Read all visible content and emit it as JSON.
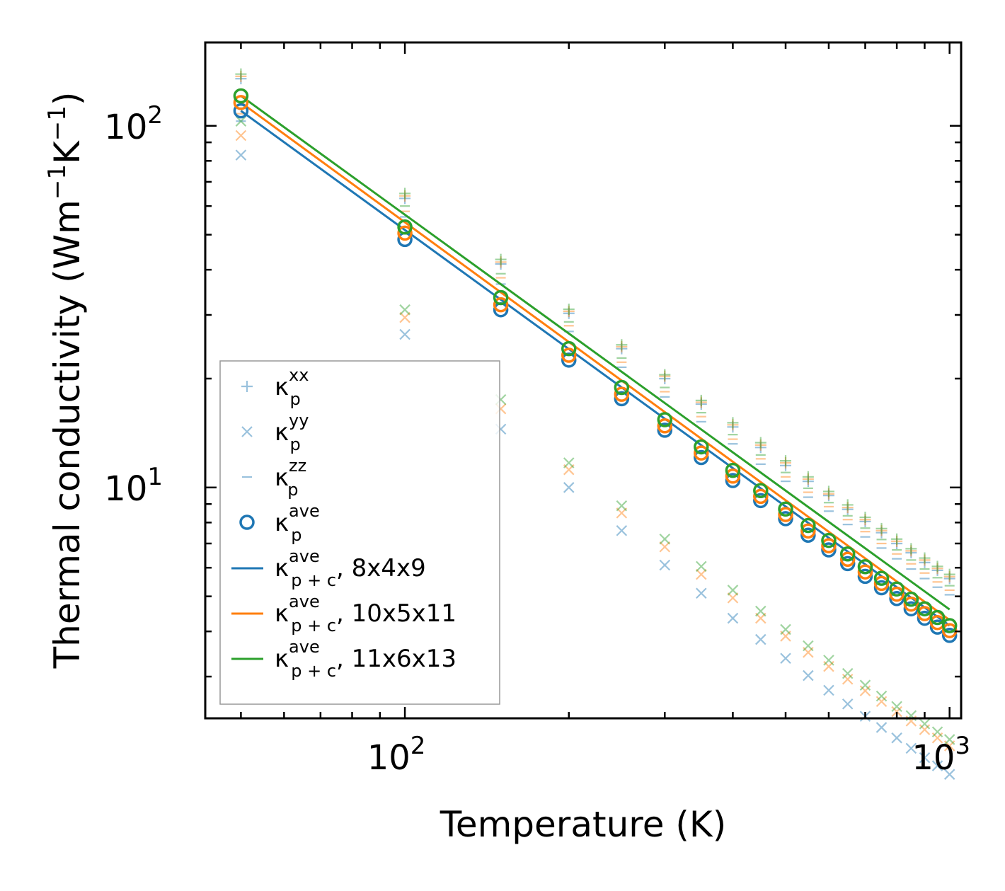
{
  "chart_data": {
    "type": "scatter",
    "title": "",
    "xlabel": "Temperature (K)",
    "ylabel": "Thermal conductivity (Wm",
    "ylabel_unit_parts": {
      "inv": "−1",
      "k": "K",
      "k_inv": "−1",
      "close": ")"
    },
    "xscale": "log",
    "yscale": "log",
    "xlim": [
      43,
      1050
    ],
    "ylim": [
      2.3,
      170
    ],
    "grid": false,
    "legend_position": "lower-left",
    "x_major_ticks": [
      {
        "value": 100,
        "base": "10",
        "exp": "2"
      },
      {
        "value": 1000,
        "base": "10",
        "exp": "3"
      }
    ],
    "y_major_ticks": [
      {
        "value": 10,
        "base": "10",
        "exp": "1"
      },
      {
        "value": 100,
        "base": "10",
        "exp": "2"
      }
    ],
    "temperatures": [
      50,
      100,
      150,
      200,
      250,
      300,
      350,
      400,
      450,
      500,
      550,
      600,
      650,
      700,
      750,
      800,
      850,
      900,
      950,
      1000
    ],
    "series": [
      {
        "name": "8x4x9",
        "color": "#1f77b4",
        "kxx": [
          135,
          63,
          41.5,
          30.3,
          24.2,
          20.0,
          17.0,
          14.7,
          12.9,
          11.5,
          10.4,
          9.5,
          8.7,
          8.05,
          7.5,
          7.0,
          6.6,
          6.2,
          5.9,
          5.6
        ],
        "kyy": [
          83,
          26.5,
          14.5,
          10.0,
          7.6,
          6.1,
          5.1,
          4.35,
          3.8,
          3.37,
          3.02,
          2.75,
          2.52,
          2.33,
          2.17,
          2.03,
          1.9,
          1.79,
          1.7,
          1.61
        ],
        "kzz": [
          103,
          56,
          36.5,
          27.0,
          21.5,
          17.8,
          15.2,
          13.2,
          11.6,
          10.4,
          9.4,
          8.6,
          7.9,
          7.3,
          6.8,
          6.35,
          5.95,
          5.6,
          5.3,
          5.05
        ],
        "kave": [
          110,
          48.5,
          31.0,
          22.5,
          17.6,
          14.4,
          12.1,
          10.45,
          9.2,
          8.2,
          7.38,
          6.72,
          6.16,
          5.68,
          5.28,
          4.93,
          4.62,
          4.35,
          4.11,
          3.9
        ],
        "line_end": 4.15
      },
      {
        "name": "10x5x11",
        "color": "#ff7f0e",
        "kxx": [
          137,
          64,
          42.0,
          30.7,
          24.5,
          20.3,
          17.2,
          14.9,
          13.1,
          11.7,
          10.55,
          9.6,
          8.8,
          8.15,
          7.6,
          7.1,
          6.68,
          6.3,
          5.97,
          5.67
        ],
        "kyy": [
          94,
          29.5,
          16.5,
          11.2,
          8.5,
          6.85,
          5.75,
          4.95,
          4.35,
          3.88,
          3.5,
          3.2,
          2.95,
          2.74,
          2.56,
          2.4,
          2.26,
          2.14,
          2.03,
          1.93
        ],
        "kzz": [
          108,
          58,
          38.0,
          28.0,
          22.2,
          18.4,
          15.7,
          13.6,
          12.0,
          10.7,
          9.7,
          8.85,
          8.15,
          7.55,
          7.0,
          6.55,
          6.15,
          5.8,
          5.48,
          5.2
        ],
        "kave": [
          116,
          50.5,
          32.0,
          23.2,
          18.1,
          14.8,
          12.45,
          10.75,
          9.45,
          8.42,
          7.58,
          6.9,
          6.33,
          5.84,
          5.43,
          5.07,
          4.76,
          4.48,
          4.23,
          4.02
        ],
        "line_end": 4.3
      },
      {
        "name": "11x6x13",
        "color": "#2ca02c",
        "kxx": [
          139,
          65,
          42.7,
          31.1,
          24.8,
          20.5,
          17.4,
          15.1,
          13.3,
          11.85,
          10.7,
          9.75,
          8.95,
          8.27,
          7.7,
          7.2,
          6.77,
          6.38,
          6.05,
          5.75
        ],
        "kyy": [
          103,
          31,
          17.5,
          11.7,
          8.9,
          7.2,
          6.05,
          5.2,
          4.55,
          4.05,
          3.65,
          3.33,
          3.06,
          2.84,
          2.65,
          2.48,
          2.34,
          2.22,
          2.11,
          2.01
        ],
        "kzz": [
          112,
          60,
          39.0,
          28.7,
          22.8,
          18.9,
          16.1,
          14.0,
          12.3,
          11.0,
          9.95,
          9.08,
          8.35,
          7.72,
          7.18,
          6.72,
          6.3,
          5.95,
          5.63,
          5.35
        ],
        "kave": [
          121,
          52.5,
          33.5,
          24.2,
          18.9,
          15.4,
          12.95,
          11.15,
          9.8,
          8.72,
          7.85,
          7.14,
          6.55,
          6.04,
          5.61,
          5.24,
          4.91,
          4.62,
          4.37,
          4.15
        ],
        "line_end": 4.6
      }
    ],
    "legend": [
      {
        "marker": "plus",
        "sym": "κ",
        "sub": "p",
        "sup": "xx",
        "suffix": ""
      },
      {
        "marker": "cross",
        "sym": "κ",
        "sub": "p",
        "sup": "yy",
        "suffix": ""
      },
      {
        "marker": "dash",
        "sym": "κ",
        "sub": "p",
        "sup": "zz",
        "suffix": ""
      },
      {
        "marker": "circle",
        "sym": "κ",
        "sub": "p",
        "sup": "ave",
        "suffix": ""
      },
      {
        "marker": "line",
        "series": 0,
        "sym": "κ",
        "sub": "p + c",
        "sup": "ave",
        "suffix": ", 8x4x9"
      },
      {
        "marker": "line",
        "series": 1,
        "sym": "κ",
        "sub": "p + c",
        "sup": "ave",
        "suffix": ", 10x5x11"
      },
      {
        "marker": "line",
        "series": 2,
        "sym": "κ",
        "sub": "p + c",
        "sup": "ave",
        "suffix": ", 11x6x13"
      }
    ]
  }
}
